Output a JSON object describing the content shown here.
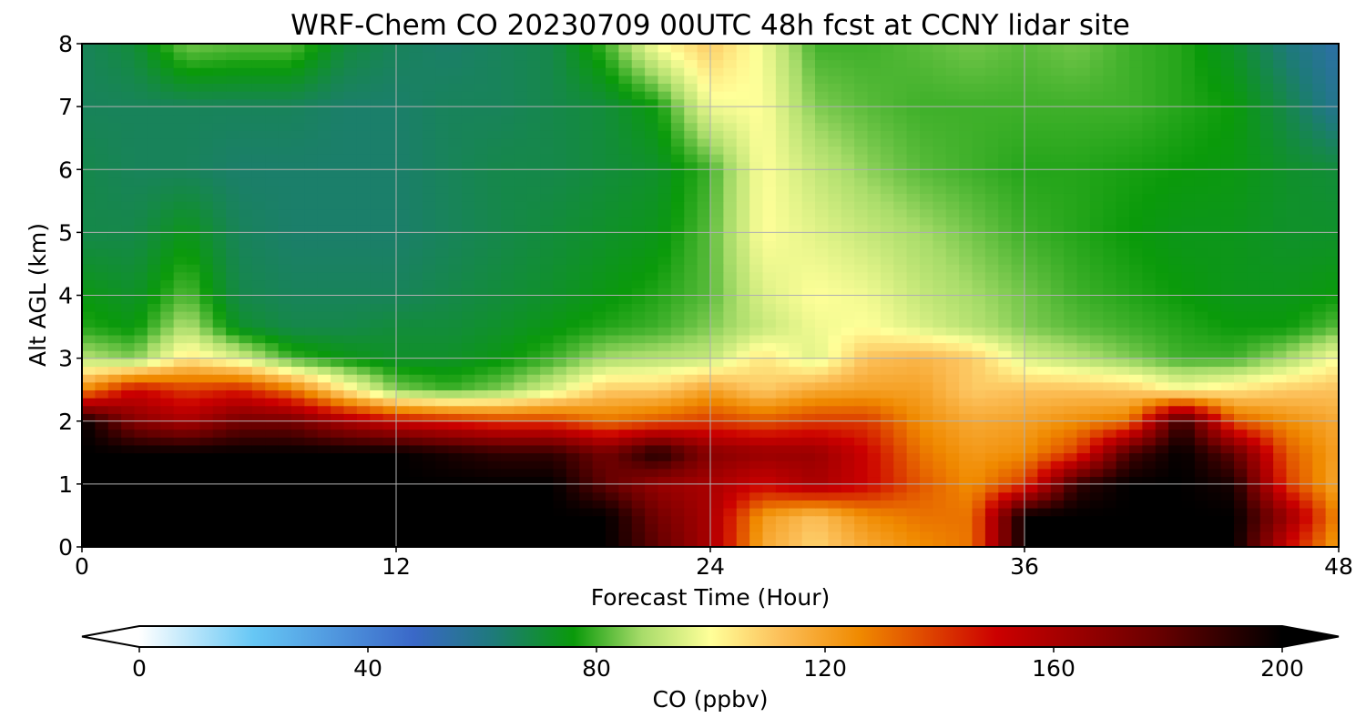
{
  "chart_data": {
    "type": "heatmap",
    "title": "WRF-Chem CO  20230709 00UTC 48h fcst at CCNY lidar site",
    "xlabel": "Forecast Time (Hour)",
    "ylabel": "Alt AGL (km)",
    "xlim": [
      0,
      48
    ],
    "ylim": [
      0,
      8
    ],
    "xticks": [
      0,
      12,
      24,
      36,
      48
    ],
    "yticks": [
      0,
      1,
      2,
      3,
      4,
      5,
      6,
      7,
      8
    ],
    "grid": true,
    "colorbar": {
      "label": "CO  (ppbv)",
      "orientation": "horizontal",
      "extend": "both",
      "min": 0,
      "max": 200,
      "ticks": [
        0,
        40,
        80,
        120,
        160,
        200
      ],
      "stops": [
        {
          "value": 0,
          "color": "#ffffff"
        },
        {
          "value": 20,
          "color": "#66c7f5"
        },
        {
          "value": 48,
          "color": "#3a68c8"
        },
        {
          "value": 62,
          "color": "#1e7a7a"
        },
        {
          "value": 76,
          "color": "#0a9a0a"
        },
        {
          "value": 88,
          "color": "#a8dc6a"
        },
        {
          "value": 100,
          "color": "#ffff99"
        },
        {
          "value": 112,
          "color": "#fcc05a"
        },
        {
          "value": 126,
          "color": "#f08a00"
        },
        {
          "value": 150,
          "color": "#cc0000"
        },
        {
          "value": 178,
          "color": "#6a0000"
        },
        {
          "value": 200,
          "color": "#000000"
        }
      ]
    },
    "x_hours": [
      0,
      2,
      4,
      6,
      8,
      10,
      12,
      14,
      16,
      18,
      20,
      22,
      24,
      26,
      28,
      30,
      32,
      34,
      36,
      38,
      40,
      42,
      44,
      46,
      48
    ],
    "z_km": [
      0,
      0.5,
      1,
      1.5,
      2,
      2.5,
      3,
      3.5,
      4,
      5,
      6,
      7,
      8
    ],
    "co_ppbv": [
      [
        200,
        200,
        200,
        200,
        200,
        200,
        200,
        200,
        200,
        200,
        200,
        180,
        160,
        118,
        108,
        118,
        125,
        130,
        200,
        200,
        200,
        200,
        200,
        150,
        120
      ],
      [
        200,
        200,
        200,
        200,
        200,
        200,
        200,
        200,
        200,
        200,
        200,
        175,
        160,
        122,
        112,
        125,
        130,
        130,
        200,
        200,
        200,
        200,
        200,
        165,
        125
      ],
      [
        200,
        200,
        200,
        200,
        200,
        200,
        200,
        200,
        200,
        200,
        180,
        165,
        160,
        150,
        160,
        150,
        135,
        125,
        140,
        190,
        200,
        200,
        195,
        140,
        118
      ],
      [
        200,
        200,
        200,
        200,
        200,
        200,
        200,
        195,
        190,
        190,
        175,
        195,
        170,
        165,
        165,
        150,
        130,
        122,
        125,
        140,
        185,
        200,
        180,
        135,
        120
      ],
      [
        200,
        170,
        160,
        175,
        175,
        160,
        150,
        145,
        140,
        140,
        130,
        135,
        140,
        135,
        140,
        140,
        125,
        118,
        120,
        125,
        130,
        190,
        135,
        125,
        118
      ],
      [
        125,
        150,
        140,
        145,
        130,
        105,
        85,
        80,
        85,
        95,
        110,
        110,
        120,
        110,
        118,
        120,
        120,
        110,
        112,
        112,
        110,
        100,
        105,
        110,
        112
      ],
      [
        90,
        85,
        105,
        95,
        80,
        75,
        72,
        72,
        75,
        80,
        88,
        90,
        92,
        105,
        95,
        112,
        115,
        110,
        95,
        90,
        85,
        80,
        80,
        88,
        100
      ],
      [
        78,
        75,
        90,
        72,
        68,
        68,
        70,
        70,
        72,
        75,
        78,
        80,
        85,
        92,
        98,
        100,
        95,
        90,
        85,
        82,
        80,
        78,
        76,
        76,
        82
      ],
      [
        75,
        72,
        82,
        68,
        66,
        66,
        66,
        68,
        70,
        72,
        75,
        78,
        82,
        95,
        100,
        98,
        92,
        88,
        84,
        80,
        78,
        76,
        74,
        74,
        76
      ],
      [
        68,
        68,
        74,
        66,
        64,
        64,
        64,
        66,
        68,
        70,
        72,
        74,
        82,
        100,
        96,
        92,
        88,
        84,
        80,
        78,
        76,
        74,
        74,
        72,
        72
      ],
      [
        68,
        66,
        66,
        64,
        64,
        64,
        64,
        66,
        68,
        68,
        70,
        72,
        80,
        100,
        92,
        86,
        82,
        80,
        78,
        78,
        77,
        76,
        75,
        72,
        70
      ],
      [
        66,
        66,
        66,
        66,
        66,
        64,
        64,
        66,
        66,
        68,
        70,
        76,
        98,
        100,
        85,
        82,
        80,
        80,
        80,
        80,
        80,
        78,
        76,
        68,
        58
      ],
      [
        66,
        70,
        84,
        82,
        82,
        70,
        66,
        64,
        66,
        68,
        80,
        100,
        110,
        98,
        80,
        80,
        82,
        84,
        82,
        84,
        80,
        78,
        72,
        62,
        54
      ]
    ]
  }
}
